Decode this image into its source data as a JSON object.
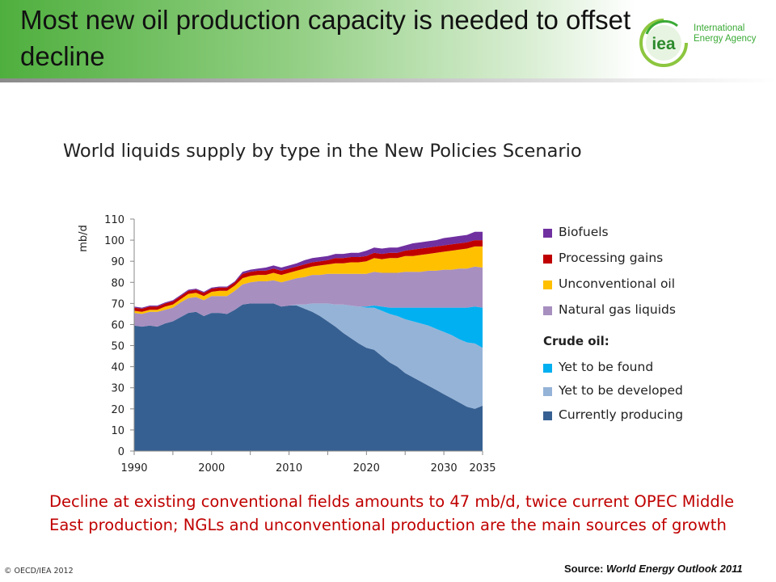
{
  "slide": {
    "title": "Most new oil production capacity is needed to offset decline",
    "note": "Decline at existing conventional fields amounts to 47 mb/d, twice current OPEC Middle East production; NGLs and unconventional production are the main sources of growth",
    "copyright": "© OECD/IEA 2012",
    "source_label": "Source: ",
    "source_title": "World Energy Outlook 2011"
  },
  "logo": {
    "mark": "iea",
    "org_line1": "International",
    "org_line2": "Energy Agency"
  },
  "legend": {
    "crude_heading": "Crude oil:",
    "items": [
      {
        "label": "Biofuels",
        "color": "#7030a0"
      },
      {
        "label": "Processing gains",
        "color": "#c00000"
      },
      {
        "label": "Unconventional oil",
        "color": "#ffc000"
      },
      {
        "label": "Natural gas liquids",
        "color": "#a78fc0"
      },
      {
        "label": "Yet to be found",
        "color": "#00b0f0"
      },
      {
        "label": "Yet to be developed",
        "color": "#95b3d7"
      },
      {
        "label": "Currently producing",
        "color": "#376092"
      }
    ]
  },
  "chart_data": {
    "type": "area",
    "stacked": true,
    "title": "World liquids supply by type in the New Policies Scenario",
    "ylabel": "mb/d",
    "xlabel": "",
    "ylim": [
      0,
      110
    ],
    "xlim": [
      1990,
      2035
    ],
    "yticks": [
      0,
      10,
      20,
      30,
      40,
      50,
      60,
      70,
      80,
      90,
      100,
      110
    ],
    "xticks": [
      1990,
      2000,
      2010,
      2020,
      2030,
      2035
    ],
    "grid": false,
    "legend_position": "right",
    "x": [
      1990,
      1991,
      1992,
      1993,
      1994,
      1995,
      1996,
      1997,
      1998,
      1999,
      2000,
      2001,
      2002,
      2003,
      2004,
      2005,
      2006,
      2007,
      2008,
      2009,
      2010,
      2011,
      2012,
      2013,
      2014,
      2015,
      2016,
      2017,
      2018,
      2019,
      2020,
      2021,
      2022,
      2023,
      2024,
      2025,
      2026,
      2027,
      2028,
      2029,
      2030,
      2031,
      2032,
      2033,
      2034,
      2035
    ],
    "series": [
      {
        "name": "Currently producing",
        "color": "#376092",
        "values": [
          59.5,
          59,
          59.5,
          59,
          60.5,
          61.5,
          63.5,
          65.5,
          66,
          64,
          65.5,
          65.5,
          65,
          67,
          69.5,
          70,
          70,
          70,
          70,
          68.5,
          69,
          69,
          67.5,
          66,
          64,
          61.5,
          59,
          56,
          53.5,
          51,
          49,
          48,
          45,
          42,
          40,
          37,
          35,
          33,
          31,
          29,
          27,
          25,
          23,
          21,
          20,
          21.5
        ]
      },
      {
        "name": "Yet to be developed",
        "color": "#95b3d7",
        "values": [
          0,
          0,
          0,
          0,
          0,
          0,
          0,
          0,
          0,
          0,
          0,
          0,
          0,
          0,
          0,
          0,
          0,
          0,
          0,
          0,
          0,
          0.5,
          2,
          4,
          6,
          8.5,
          10.5,
          13.5,
          15.5,
          17.5,
          19,
          20,
          21.5,
          23,
          24,
          25.5,
          26.5,
          27.5,
          28.5,
          29,
          29.5,
          30,
          30,
          30.5,
          31,
          27.5
        ]
      },
      {
        "name": "Yet to be found",
        "color": "#00b0f0",
        "values": [
          0,
          0,
          0,
          0,
          0,
          0,
          0,
          0,
          0,
          0,
          0,
          0,
          0,
          0,
          0,
          0,
          0,
          0,
          0,
          0,
          0,
          0,
          0,
          0,
          0,
          0,
          0,
          0,
          0,
          0,
          0.5,
          1,
          2,
          3,
          4,
          5.5,
          6.5,
          7.5,
          8.5,
          10,
          11.5,
          13,
          15,
          16.5,
          17.5,
          19
        ]
      },
      {
        "name": "Natural gas liquids",
        "color": "#a78fc0",
        "values": [
          6,
          6,
          6.5,
          7,
          6.5,
          6.5,
          7,
          7,
          7,
          7.5,
          8,
          8,
          8.5,
          9,
          9.5,
          10,
          10.5,
          10.5,
          11,
          11.5,
          12,
          12.5,
          13,
          13.5,
          13.5,
          14,
          14.5,
          14.5,
          15,
          15.5,
          15.5,
          16,
          16,
          16.5,
          16.5,
          17,
          17,
          17,
          17.5,
          17.5,
          18,
          18,
          18.5,
          18.5,
          19,
          19
        ]
      },
      {
        "name": "Unconventional oil",
        "color": "#ffc000",
        "values": [
          1,
          1,
          1,
          1,
          1.5,
          1.5,
          1.5,
          2,
          2,
          2,
          2,
          2.5,
          2.5,
          2.5,
          3,
          3,
          3,
          3,
          3.5,
          3.5,
          3.5,
          3.5,
          4,
          4,
          4.5,
          4.5,
          5,
          5,
          5.5,
          5.5,
          6,
          6.5,
          6.5,
          7,
          7,
          7.5,
          7.5,
          8,
          8,
          8.5,
          8.5,
          9,
          9,
          9.5,
          9.5,
          10
        ]
      },
      {
        "name": "Processing gains",
        "color": "#c00000",
        "values": [
          1.5,
          1.5,
          1.5,
          1.5,
          1.5,
          1.5,
          1.5,
          1.5,
          1.5,
          1.5,
          1.5,
          1.5,
          1.5,
          1.5,
          2,
          2,
          2,
          2,
          2,
          2,
          2,
          2,
          2,
          2,
          2,
          2,
          2.5,
          2.5,
          2.5,
          2.5,
          2.5,
          2.5,
          2.5,
          2.5,
          2.5,
          2.5,
          3,
          3,
          3,
          3,
          3,
          3,
          3,
          3,
          3,
          3
        ]
      },
      {
        "name": "Biofuels",
        "color": "#7030a0",
        "values": [
          0.5,
          0.5,
          0.5,
          0.5,
          0.5,
          0.5,
          0.5,
          0.5,
          0.5,
          0.5,
          0.5,
          0.5,
          0.5,
          0.5,
          1,
          1,
          1,
          1.5,
          1.5,
          1.5,
          1.5,
          1.5,
          2,
          2,
          2,
          2,
          2,
          2,
          2,
          2,
          2.5,
          2.5,
          2.5,
          2.5,
          2.5,
          2.5,
          3,
          3,
          3,
          3,
          3.5,
          3.5,
          3.5,
          3.5,
          4,
          4
        ]
      }
    ]
  }
}
